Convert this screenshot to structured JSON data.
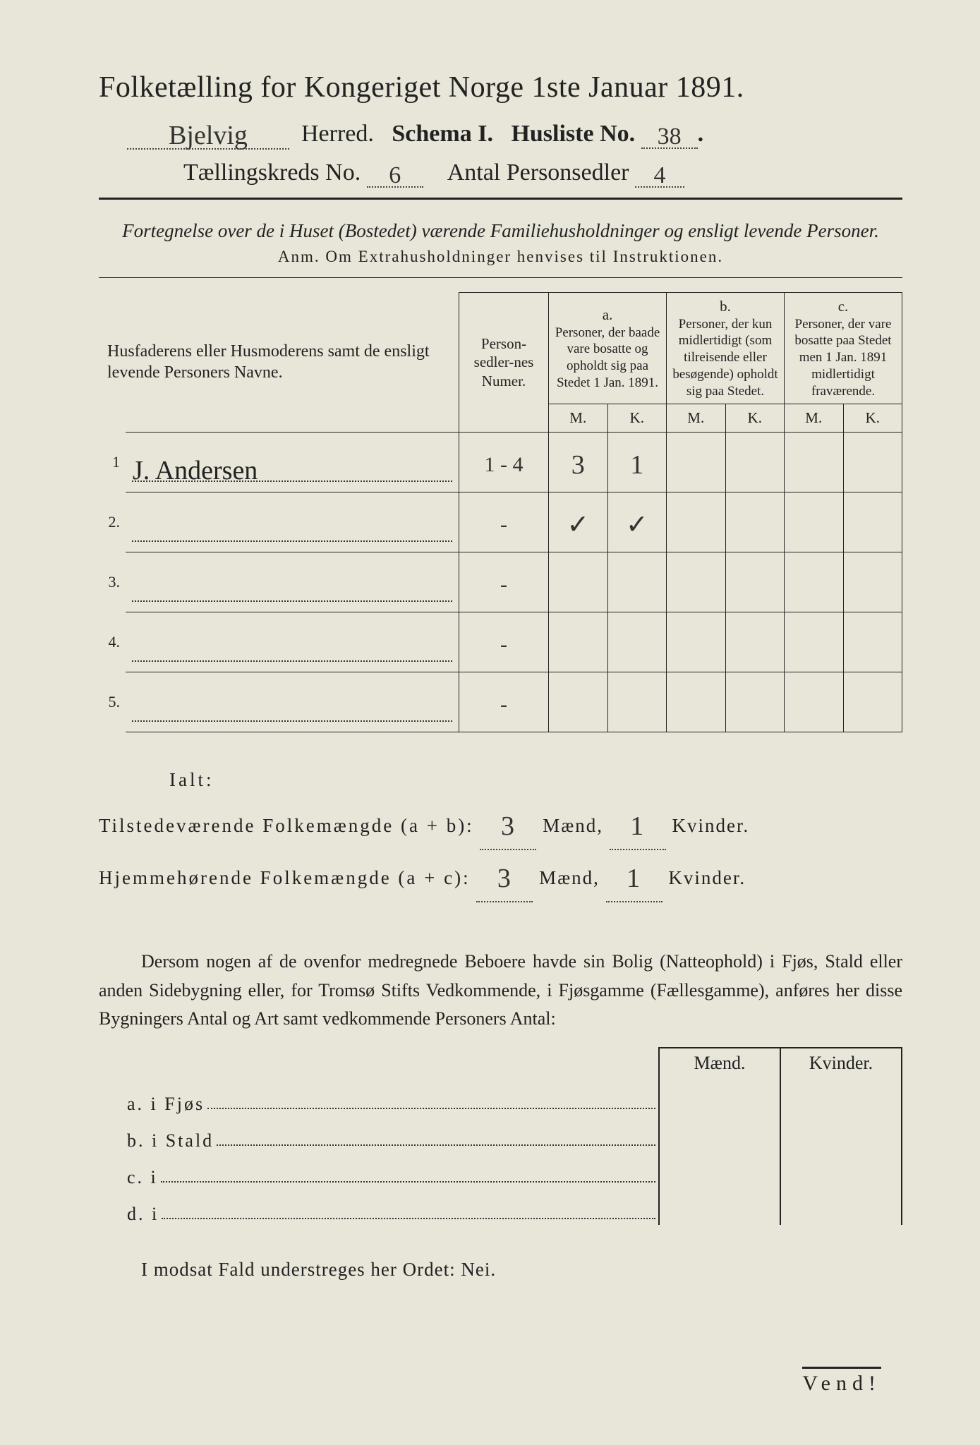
{
  "header": {
    "title_prefix": "Folketælling for Kongeriget Norge 1ste Januar 1891.",
    "herred_value": "Bjelvig",
    "herred_label": "Herred.",
    "schema_label": "Schema I.",
    "husliste_label": "Husliste No.",
    "husliste_value": "38",
    "kreds_label": "Tællingskreds No.",
    "kreds_value": "6",
    "antal_label": "Antal Personsedler",
    "antal_value": "4"
  },
  "note": {
    "italic": "Fortegnelse over de i Huset (Bostedet) værende Familiehusholdninger og ensligt levende Personer.",
    "anm": "Anm.  Om Extrahusholdninger henvises til Instruktionen."
  },
  "table": {
    "col1": "Husfaderens eller Husmoderens samt de ensligt levende Personers Navne.",
    "col2": "Person-sedler-nes Numer.",
    "col_a_tag": "a.",
    "col_a": "Personer, der baade vare bosatte og opholdt sig paa Stedet 1 Jan. 1891.",
    "col_b_tag": "b.",
    "col_b": "Personer, der kun midlertidigt (som tilreisende eller besøgende) opholdt sig paa Stedet.",
    "col_c_tag": "c.",
    "col_c": "Personer, der vare bosatte paa Stedet men 1 Jan. 1891 midlertidigt fraværende.",
    "m": "M.",
    "k": "K.",
    "rows": [
      {
        "n": "1",
        "name": "J. Andersen",
        "numer": "1 - 4",
        "a_m": "3",
        "a_k": "1",
        "b_m": "",
        "b_k": "",
        "c_m": "",
        "c_k": ""
      },
      {
        "n": "2.",
        "name": "",
        "numer": "-",
        "a_m": "✓",
        "a_k": "✓",
        "b_m": "",
        "b_k": "",
        "c_m": "",
        "c_k": ""
      },
      {
        "n": "3.",
        "name": "",
        "numer": "-",
        "a_m": "",
        "a_k": "",
        "b_m": "",
        "b_k": "",
        "c_m": "",
        "c_k": ""
      },
      {
        "n": "4.",
        "name": "",
        "numer": "-",
        "a_m": "",
        "a_k": "",
        "b_m": "",
        "b_k": "",
        "c_m": "",
        "c_k": ""
      },
      {
        "n": "5.",
        "name": "",
        "numer": "-",
        "a_m": "",
        "a_k": "",
        "b_m": "",
        "b_k": "",
        "c_m": "",
        "c_k": ""
      }
    ]
  },
  "totals": {
    "ialt": "Ialt:",
    "line1_label": "Tilstedeværende Folkemængde (a + b):",
    "line1_m": "3",
    "maend": "Mænd,",
    "line1_k": "1",
    "kvinder": "Kvinder.",
    "line2_label": "Hjemmehørende Folkemængde (a + c):",
    "line2_m": "3",
    "line2_k": "1"
  },
  "bottom": {
    "para": "Dersom nogen af de ovenfor medregnede Beboere havde sin Bolig (Natteophold) i Fjøs, Stald eller anden Sidebygning eller, for Tromsø Stifts Vedkommende, i Fjøsgamme (Fællesgamme), anføres her disse Bygningers Antal og Art samt vedkommende Personers Antal:",
    "maend": "Mænd.",
    "kvinder": "Kvinder.",
    "a": "a.  i      Fjøs",
    "b": "b.  i      Stald",
    "c": "c.  i",
    "d": "d.  i",
    "nei": "I modsat Fald understreges her Ordet: Nei.",
    "vend": "Vend!"
  },
  "colors": {
    "paper": "#e8e6d8",
    "ink": "#222222",
    "background": "#1a1a1a"
  }
}
